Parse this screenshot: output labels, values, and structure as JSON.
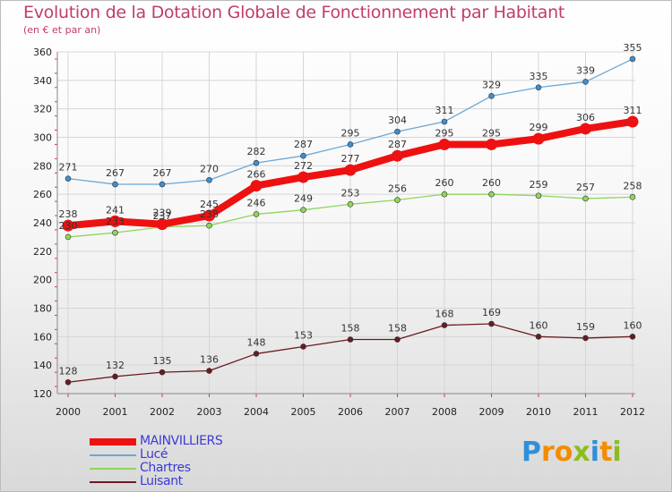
{
  "title": "Evolution de la Dotation Globale de Fonctionnement par Habitant",
  "subtitle": "(en € et par an)",
  "logo": {
    "text": "Proxiti",
    "letters": [
      {
        "ch": "P",
        "color": "#2f8fd8"
      },
      {
        "ch": "r",
        "color": "#f28c00"
      },
      {
        "ch": "o",
        "color": "#f28c00"
      },
      {
        "ch": "x",
        "color": "#8cbd1e"
      },
      {
        "ch": "i",
        "color": "#2f8fd8"
      },
      {
        "ch": "t",
        "color": "#f28c00"
      },
      {
        "ch": "i",
        "color": "#8cbd1e"
      }
    ]
  },
  "chart_data": {
    "type": "line",
    "x": [
      "2000",
      "2001",
      "2002",
      "2003",
      "2004",
      "2005",
      "2006",
      "2007",
      "2008",
      "2009",
      "2010",
      "2011",
      "2012"
    ],
    "ylim": [
      120,
      360
    ],
    "yticks": [
      120,
      140,
      160,
      180,
      200,
      220,
      240,
      260,
      280,
      300,
      320,
      340,
      360
    ],
    "grid": true,
    "legend_position": "bottom-left",
    "series": [
      {
        "name": "Chartres",
        "color": "#8fd65a",
        "marker": "#8fd65a",
        "values": [
          230,
          233,
          237,
          238,
          246,
          249,
          253,
          256,
          260,
          260,
          259,
          257,
          258
        ],
        "labels": [
          "230",
          "233",
          "237",
          "238",
          "246",
          "249",
          "253",
          "256",
          "260",
          "260",
          "259",
          "257",
          "258"
        ]
      },
      {
        "name": "Lucé",
        "color": "#6aa8d6",
        "marker": "#3d8fd0",
        "values": [
          271,
          267,
          267,
          270,
          282,
          287,
          295,
          304,
          311,
          329,
          335,
          339,
          355
        ],
        "labels": [
          "271",
          "267",
          "267",
          "270",
          "282",
          "287",
          "295",
          "304",
          "311",
          "329",
          "335",
          "339",
          "355"
        ]
      },
      {
        "name": "Luisant",
        "color": "#6b1a22",
        "marker": "#6b1a22",
        "values": [
          128,
          132,
          135,
          136,
          148,
          153,
          158,
          158,
          168,
          169,
          160,
          159,
          160
        ],
        "labels": [
          "128",
          "132",
          "135",
          "136",
          "148",
          "153",
          "158",
          "158",
          "168",
          "169",
          "160",
          "159",
          "160"
        ]
      },
      {
        "name": "MAINVILLIERS",
        "color": "#ee1111",
        "marker": "#ee1111",
        "values": [
          238,
          241,
          239,
          245,
          266,
          272,
          277,
          287,
          295,
          295,
          299,
          306,
          311
        ],
        "labels": [
          "238",
          "241",
          "239",
          "245",
          "266",
          "272",
          "277",
          "287",
          "295",
          "295",
          "299",
          "306",
          "311"
        ]
      }
    ],
    "legend": [
      {
        "name": "MAINVILLIERS",
        "color": "#ee1111",
        "text_color": "#3b3bd6"
      },
      {
        "name": "Lucé",
        "color": "#6aa8d6",
        "text_color": "#3b3bd6"
      },
      {
        "name": "Chartres",
        "color": "#8fd65a",
        "text_color": "#3b3bd6"
      },
      {
        "name": "Luisant",
        "color": "#6b1a22",
        "text_color": "#3b3bd6"
      }
    ]
  }
}
